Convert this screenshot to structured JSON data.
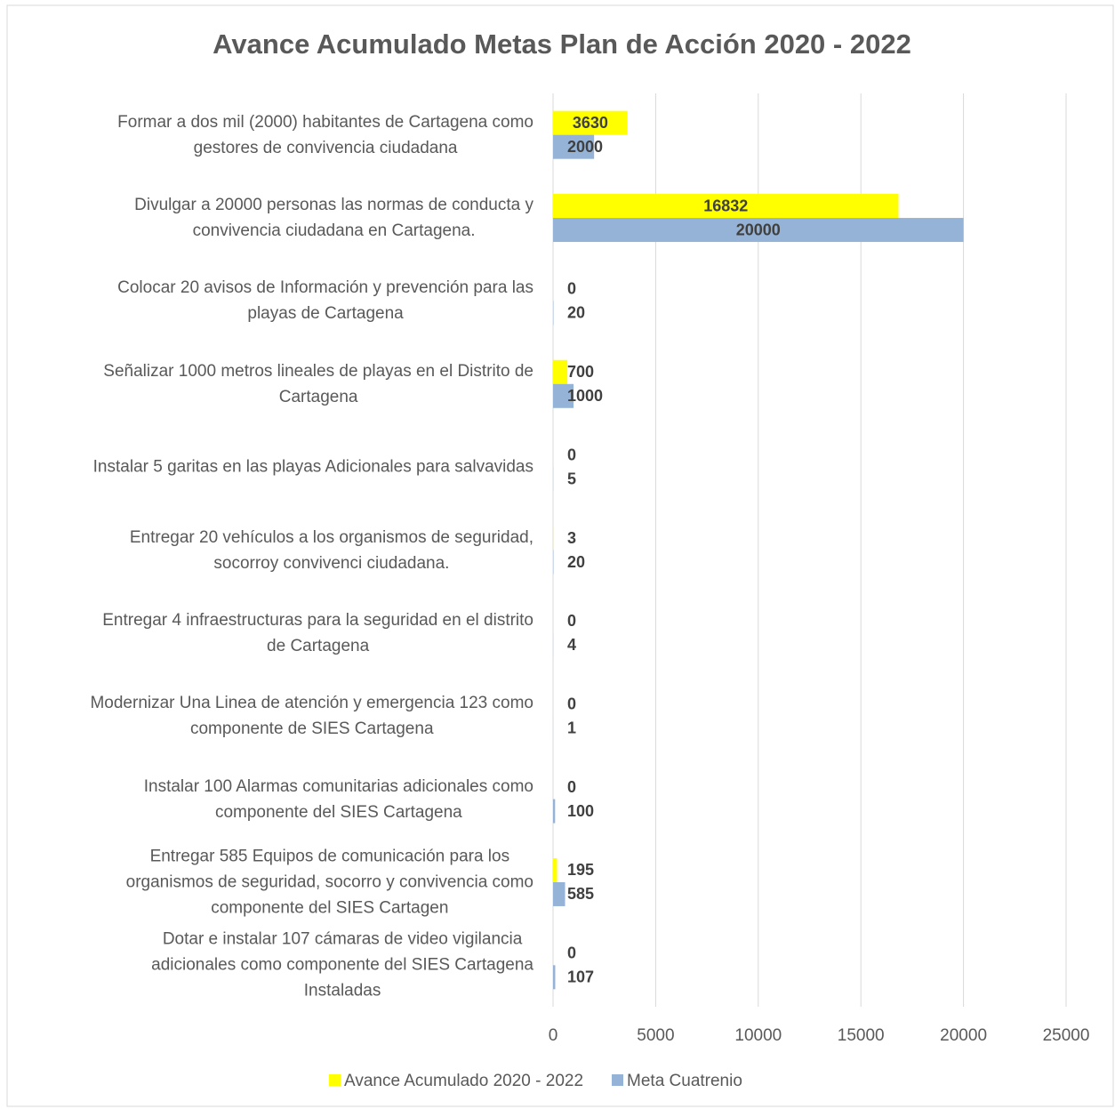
{
  "chart_data": {
    "type": "bar",
    "orientation": "horizontal",
    "title": "Avance Acumulado Metas Plan de Acción 2020 - 2022",
    "categories": [
      "Formar a dos mil (2000) habitantes de Cartagena como\ngestores de convivencia ciudadana",
      "Divulgar a 20000 personas las normas de conducta y\nconvivencia ciudadana en Cartagena.",
      "Colocar 20 avisos de Información y prevención para las\nplayas de Cartagena",
      "Señalizar 1000 metros lineales de playas en el Distrito de\nCartagena",
      "Instalar 5 garitas en las playas Adicionales para salvavidas",
      "Entregar 20 vehículos a los organismos de seguridad,\nsocorroy convivenci ciudadana.",
      "Entregar 4 infraestructuras para la seguridad en el distrito\nde Cartagena",
      "Modernizar Una Linea de atención y emergencia 123 como\ncomponente de SIES Cartagena",
      "Instalar 100 Alarmas comunitarias adicionales como\ncomponente del SIES Cartagena",
      "Entregar 585 Equipos de comunicación para los\norganismos de seguridad, socorro y convivencia como\ncomponente del SIES Cartagen",
      "Dotar e instalar 107 cámaras de video vigilancia\nadicionales como componente del SIES Cartagena\nInstaladas"
    ],
    "series": [
      {
        "name": "Avance Acumulado 2020 - 2022",
        "color": "#ffff00",
        "values": [
          3630,
          16832,
          0,
          700,
          0,
          3,
          0,
          0,
          0,
          195,
          0
        ]
      },
      {
        "name": "Meta Cuatrenio",
        "color": "#95b3d7",
        "values": [
          2000,
          20000,
          20,
          1000,
          5,
          20,
          4,
          1,
          100,
          585,
          107
        ]
      }
    ],
    "xlim": [
      0,
      25000
    ],
    "xticks": [
      0,
      5000,
      10000,
      15000,
      20000,
      25000
    ],
    "grid": true,
    "legend": "bottom"
  }
}
